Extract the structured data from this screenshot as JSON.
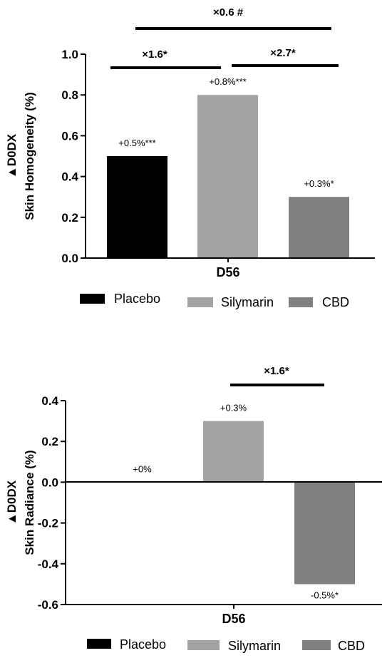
{
  "colors": {
    "placebo": "#000000",
    "silymarin": "#a3a3a5",
    "cbd": "#818181"
  },
  "chart_data": [
    {
      "type": "bar",
      "categories": [
        "D56"
      ],
      "xlabel": "D56",
      "ylabel_top": "▲D0DX",
      "ylabel": "Skin Homogeneity (%)",
      "ylim": [
        0,
        1.0
      ],
      "yticks": [
        0.0,
        0.2,
        0.4,
        0.6,
        0.8,
        1.0
      ],
      "tick_labels": [
        "0.0",
        "0.2",
        "0.4",
        "0.6",
        "0.8",
        "1.0"
      ],
      "series": [
        {
          "name": "Placebo",
          "values": [
            0.5
          ],
          "label": "+0.5%***"
        },
        {
          "name": "Silymarin",
          "values": [
            0.8
          ],
          "label": "+0.8%***"
        },
        {
          "name": "CBD",
          "values": [
            0.3
          ],
          "label": "+0.3%*"
        }
      ],
      "comparisons": [
        {
          "from": "Placebo",
          "to": "Silymarin",
          "label": "×1.6*"
        },
        {
          "from": "Silymarin",
          "to": "CBD",
          "label": "×2.7*"
        },
        {
          "from": "Placebo",
          "to": "CBD",
          "label": "×0.6 #"
        }
      ],
      "legend": [
        "Placebo",
        "Silymarin",
        "CBD"
      ]
    },
    {
      "type": "bar",
      "categories": [
        "D56"
      ],
      "xlabel": "D56",
      "ylabel_top": "▲D0DX",
      "ylabel": "Skin Radiance (%)",
      "ylim": [
        -0.6,
        0.4
      ],
      "yticks": [
        -0.6,
        -0.4,
        -0.2,
        0.0,
        0.2,
        0.4
      ],
      "tick_labels": [
        "-0.6",
        "-0.4",
        "-0.2",
        "0.0",
        "0.2",
        "0.4"
      ],
      "series": [
        {
          "name": "Placebo",
          "values": [
            0
          ],
          "label": "+0%"
        },
        {
          "name": "Silymarin",
          "values": [
            0.3
          ],
          "label": "+0.3%"
        },
        {
          "name": "CBD",
          "values": [
            -0.5
          ],
          "label": "-0.5%*"
        }
      ],
      "comparisons": [
        {
          "from": "Silymarin",
          "to": "CBD",
          "label": "×1.6*"
        }
      ],
      "legend": [
        "Placebo",
        "Silymarin",
        "CBD"
      ]
    }
  ]
}
